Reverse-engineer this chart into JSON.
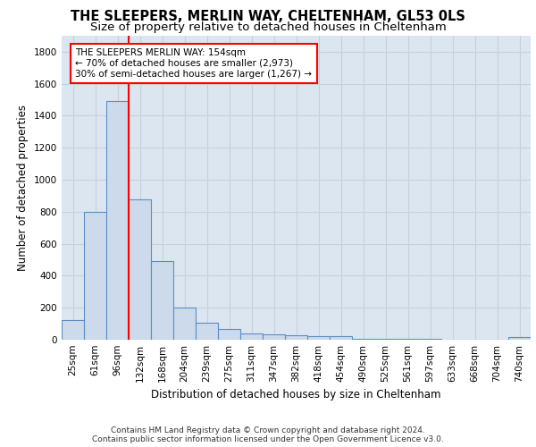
{
  "title": "THE SLEEPERS, MERLIN WAY, CHELTENHAM, GL53 0LS",
  "subtitle": "Size of property relative to detached houses in Cheltenham",
  "xlabel": "Distribution of detached houses by size in Cheltenham",
  "ylabel": "Number of detached properties",
  "categories": [
    "25sqm",
    "61sqm",
    "96sqm",
    "132sqm",
    "168sqm",
    "204sqm",
    "239sqm",
    "275sqm",
    "311sqm",
    "347sqm",
    "382sqm",
    "418sqm",
    "454sqm",
    "490sqm",
    "525sqm",
    "561sqm",
    "597sqm",
    "633sqm",
    "668sqm",
    "704sqm",
    "740sqm"
  ],
  "values": [
    125,
    800,
    1490,
    880,
    490,
    200,
    105,
    65,
    40,
    35,
    30,
    20,
    20,
    5,
    5,
    5,
    5,
    0,
    0,
    0,
    15
  ],
  "bar_color": "#ccdaeb",
  "bar_edge_color": "#5b8ec4",
  "red_line_x": 2.5,
  "annotation_line1": "THE SLEEPERS MERLIN WAY: 154sqm",
  "annotation_line2": "← 70% of detached houses are smaller (2,973)",
  "annotation_line3": "30% of semi-detached houses are larger (1,267) →",
  "ylim_max": 1900,
  "yticks": [
    0,
    200,
    400,
    600,
    800,
    1000,
    1200,
    1400,
    1600,
    1800
  ],
  "grid_color": "#c8d0da",
  "bg_color": "#dce6f1",
  "footer_line1": "Contains HM Land Registry data © Crown copyright and database right 2024.",
  "footer_line2": "Contains public sector information licensed under the Open Government Licence v3.0.",
  "title_fontsize": 10.5,
  "subtitle_fontsize": 9.5,
  "tick_fontsize": 7.5,
  "ylabel_fontsize": 8.5,
  "xlabel_fontsize": 8.5,
  "annot_fontsize": 7.5,
  "footer_fontsize": 6.5
}
